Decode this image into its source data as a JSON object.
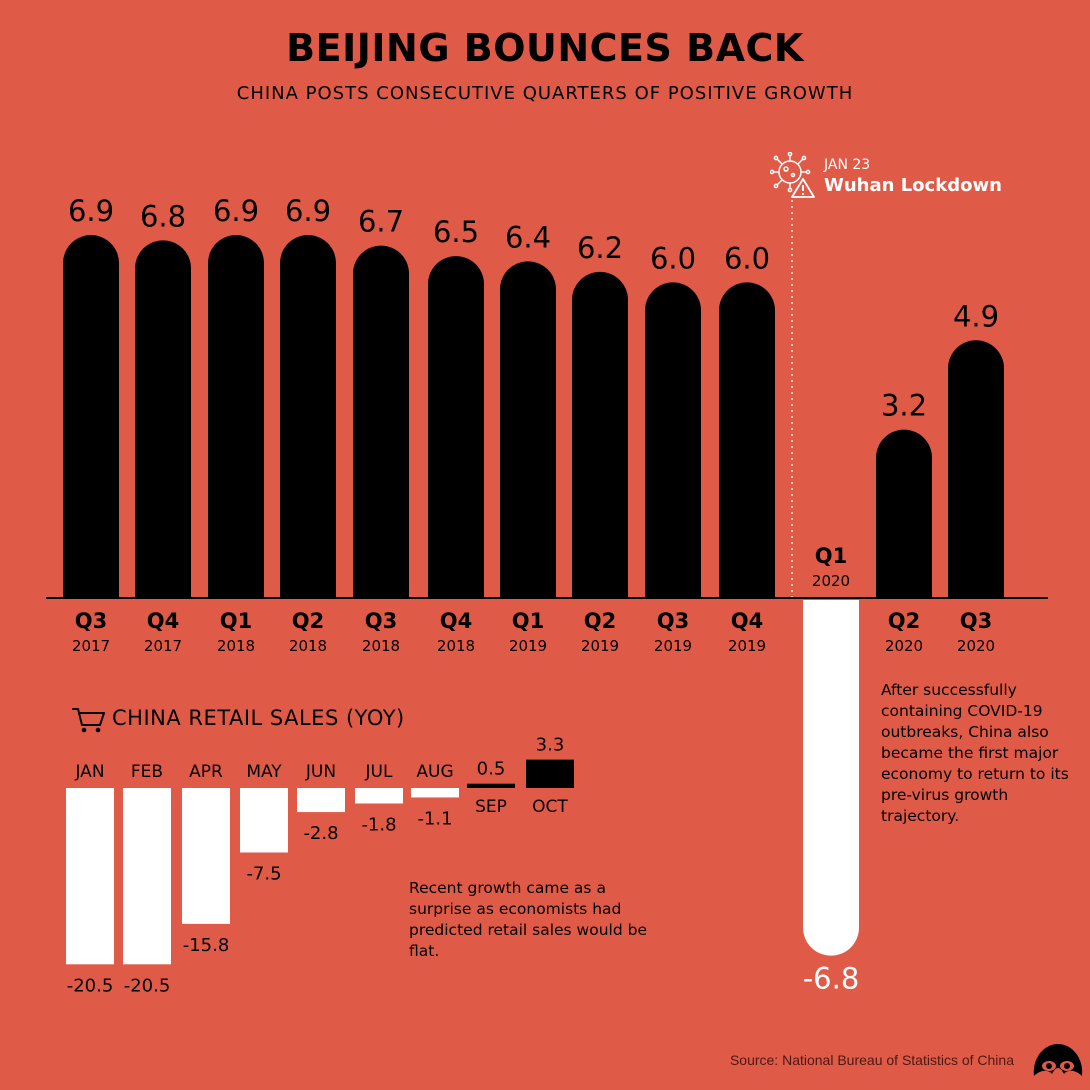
{
  "title": "BEIJING BOUNCES BACK",
  "subtitle": "CHINA POSTS CONSECUTIVE QUARTERS OF POSITIVE GROWTH",
  "annotation": {
    "date": "JAN 23",
    "label": "Wuhan Lockdown"
  },
  "note_main": "After successfully containing COVID-19 outbreaks, China also became the first major economy to return to its pre-virus growth trajectory.",
  "note_retail": "Recent growth came as a surprise as economists had predicted retail sales would be flat.",
  "source": "Source: National Bureau of Statistics of China",
  "colors": {
    "background": "#e05a48",
    "positive": "#000000",
    "negative": "#ffffff"
  },
  "chart_data": [
    {
      "type": "bar",
      "title": "BEIJING BOUNCES BACK",
      "subtitle": "CHINA POSTS CONSECUTIVE QUARTERS OF POSITIVE GROWTH",
      "categories": [
        {
          "quarter": "Q3",
          "year": "2017"
        },
        {
          "quarter": "Q4",
          "year": "2017"
        },
        {
          "quarter": "Q1",
          "year": "2018"
        },
        {
          "quarter": "Q2",
          "year": "2018"
        },
        {
          "quarter": "Q3",
          "year": "2018"
        },
        {
          "quarter": "Q4",
          "year": "2018"
        },
        {
          "quarter": "Q1",
          "year": "2019"
        },
        {
          "quarter": "Q2",
          "year": "2019"
        },
        {
          "quarter": "Q3",
          "year": "2019"
        },
        {
          "quarter": "Q4",
          "year": "2019"
        },
        {
          "quarter": "Q1",
          "year": "2020"
        },
        {
          "quarter": "Q2",
          "year": "2020"
        },
        {
          "quarter": "Q3",
          "year": "2020"
        }
      ],
      "values": [
        6.9,
        6.8,
        6.9,
        6.9,
        6.7,
        6.5,
        6.4,
        6.2,
        6.0,
        6.0,
        -6.8,
        3.2,
        4.9
      ],
      "value_labels": [
        "6.9",
        "6.8",
        "6.9",
        "6.9",
        "6.7",
        "6.5",
        "6.4",
        "6.2",
        "6.0",
        "6.0",
        "-6.8",
        "3.2",
        "4.9"
      ],
      "ylim": [
        -6.8,
        6.9
      ],
      "grid": false,
      "annotation": "Wuhan Lockdown (JAN 23) between Q4 2019 and Q1 2020"
    },
    {
      "type": "bar",
      "title": "CHINA RETAIL SALES (YOY)",
      "categories": [
        "JAN",
        "FEB",
        "APR",
        "MAY",
        "JUN",
        "JUL",
        "AUG",
        "SEP",
        "OCT"
      ],
      "values": [
        -20.5,
        -20.5,
        -15.8,
        -7.5,
        -2.8,
        -1.8,
        -1.1,
        0.5,
        3.3
      ],
      "value_labels": [
        "-20.5",
        "-20.5",
        "-15.8",
        "-7.5",
        "-2.8",
        "-1.8",
        "-1.1",
        "0.5",
        "3.3"
      ],
      "ylim": [
        -20.5,
        3.3
      ],
      "grid": false
    }
  ]
}
